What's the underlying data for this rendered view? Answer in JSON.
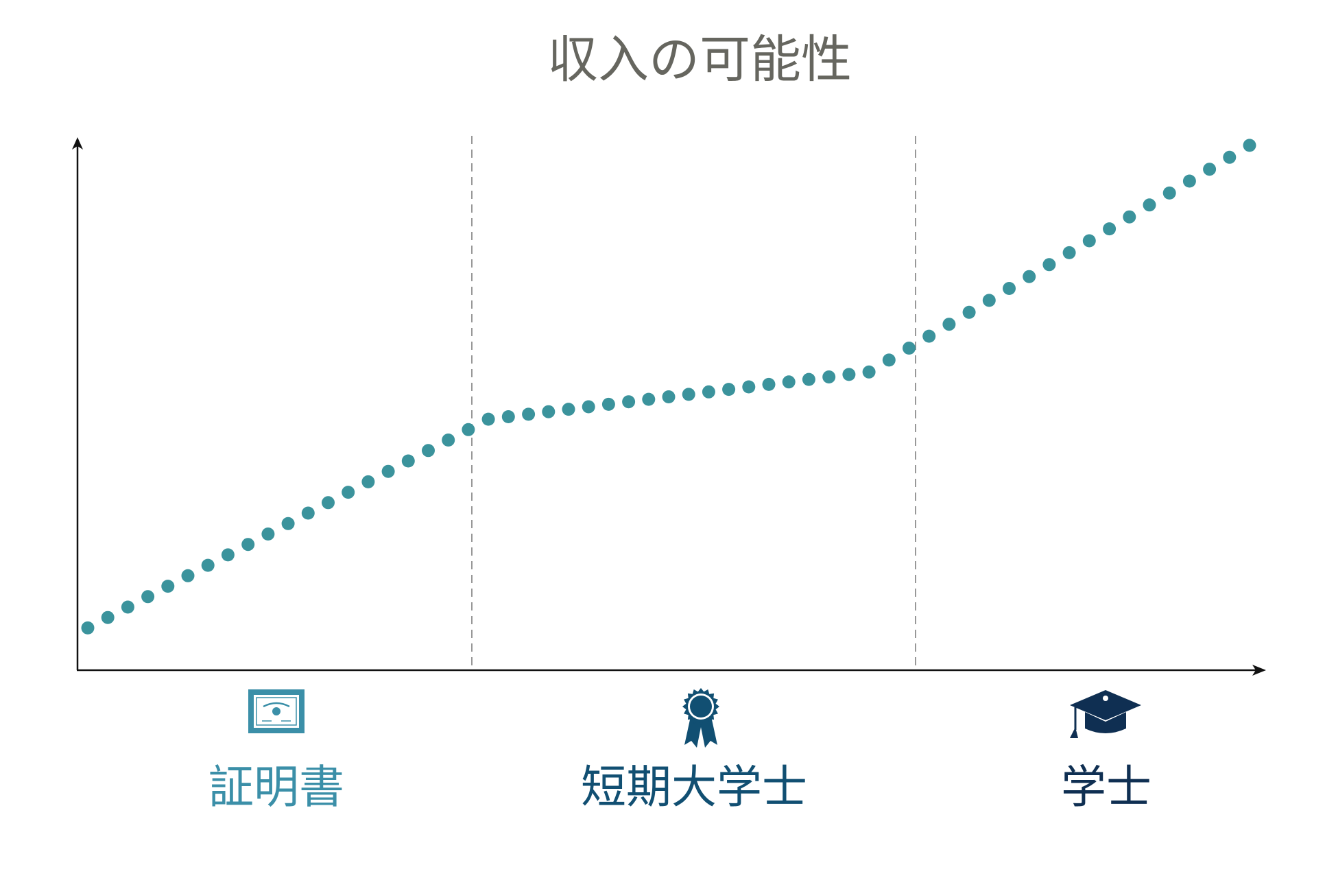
{
  "colors": {
    "dots": "#3b939c",
    "axis": "#111111",
    "divider": "#777777",
    "title": "#66665f",
    "certificate": "#3b8fa8",
    "associate": "#114f72",
    "bachelor": "#0f2f52"
  },
  "chart_data": {
    "type": "scatter",
    "title": "収入の可能性",
    "xlabel": "",
    "ylabel": "",
    "x_ticks": false,
    "y_ticks": false,
    "dividers": 2,
    "categories": [
      {
        "label": "証明書",
        "icon": "certificate-icon"
      },
      {
        "label": "短期大学士",
        "icon": "ribbon-award-icon"
      },
      {
        "label": "学士",
        "icon": "graduation-cap-icon"
      }
    ],
    "series": [
      {
        "values": [
          0.085,
          0.106,
          0.127,
          0.148,
          0.169,
          0.19,
          0.211,
          0.232,
          0.253,
          0.274,
          0.295,
          0.316,
          0.337,
          0.358,
          0.379,
          0.4,
          0.421,
          0.442,
          0.463,
          0.484,
          0.505,
          0.51,
          0.515,
          0.52,
          0.525,
          0.53,
          0.535,
          0.54,
          0.545,
          0.55,
          0.555,
          0.56,
          0.565,
          0.57,
          0.575,
          0.58,
          0.585,
          0.59,
          0.595,
          0.6,
          0.624,
          0.648,
          0.672,
          0.696,
          0.72,
          0.744,
          0.768,
          0.792,
          0.816,
          0.84,
          0.864,
          0.888,
          0.912,
          0.936,
          0.96,
          0.984,
          1.008,
          1.032,
          1.056
        ]
      }
    ]
  }
}
